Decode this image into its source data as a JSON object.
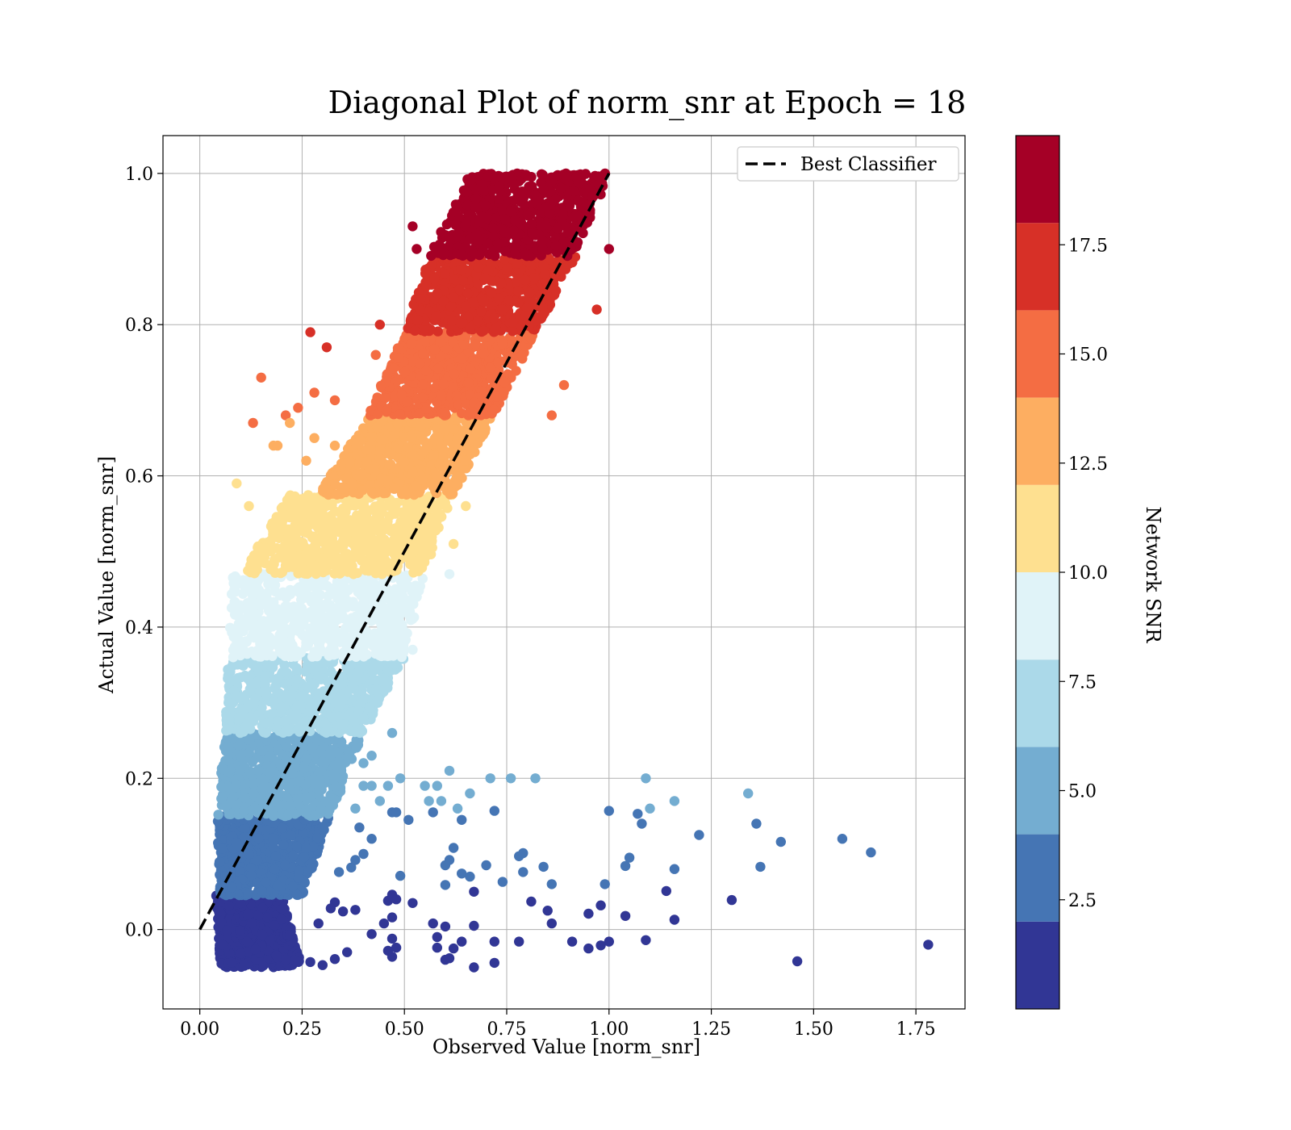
{
  "chart_data": {
    "type": "scatter",
    "title": "Diagonal Plot of norm_snr at Epoch = 18",
    "xlabel": "Observed Value [norm_snr]",
    "ylabel": "Actual Value [norm_snr]",
    "xlim": [
      -0.09,
      1.87
    ],
    "ylim": [
      -0.105,
      1.05
    ],
    "x_ticks": [
      0.0,
      0.25,
      0.5,
      0.75,
      1.0,
      1.25,
      1.5,
      1.75
    ],
    "x_tick_labels": [
      "0.00",
      "0.25",
      "0.50",
      "0.75",
      "1.00",
      "1.25",
      "1.50",
      "1.75"
    ],
    "y_ticks": [
      0.0,
      0.2,
      0.4,
      0.6,
      0.8,
      1.0
    ],
    "y_tick_labels": [
      "0.0",
      "0.2",
      "0.4",
      "0.6",
      "0.8",
      "1.0"
    ],
    "grid": true,
    "legend": {
      "placement": "upper right",
      "entries": [
        {
          "label": "Best Classifier",
          "style": "dashed",
          "color": "#000000"
        }
      ]
    },
    "reference_line": {
      "name": "Best Classifier",
      "x": [
        0.0,
        1.0
      ],
      "y": [
        0.0,
        1.0
      ]
    },
    "colorbar": {
      "label": "Network SNR",
      "range": [
        0,
        20
      ],
      "boundaries": [
        0,
        2,
        4,
        6,
        8,
        10,
        12,
        14,
        16,
        18,
        20
      ],
      "colors": [
        "#313695",
        "#4575b4",
        "#74add1",
        "#abd9e9",
        "#e0f3f8",
        "#fee090",
        "#fdae61",
        "#f46d43",
        "#d73027",
        "#a50026"
      ],
      "ticks": [
        2.5,
        5.0,
        7.5,
        10.0,
        12.5,
        15.0,
        17.5
      ],
      "tick_labels": [
        "2.5",
        "5.0",
        "7.5",
        "10.0",
        "12.5",
        "15.0",
        "17.5"
      ]
    },
    "bands": [
      {
        "snr_bin": 0,
        "y_range": [
          -0.05,
          0.045
        ],
        "x_left": [
          0.05,
          0.04
        ],
        "x_right": [
          0.25,
          0.2
        ],
        "color": "#313695"
      },
      {
        "snr_bin": 1,
        "y_range": [
          0.045,
          0.15
        ],
        "x_left": [
          0.05,
          0.04
        ],
        "x_right": [
          0.25,
          0.32
        ],
        "color": "#4575b4"
      },
      {
        "snr_bin": 2,
        "y_range": [
          0.15,
          0.26
        ],
        "x_left": [
          0.04,
          0.06
        ],
        "x_right": [
          0.32,
          0.4
        ],
        "color": "#74add1"
      },
      {
        "snr_bin": 3,
        "y_range": [
          0.26,
          0.36
        ],
        "x_left": [
          0.06,
          0.07
        ],
        "x_right": [
          0.4,
          0.5
        ],
        "color": "#abd9e9"
      },
      {
        "snr_bin": 4,
        "y_range": [
          0.36,
          0.47
        ],
        "x_left": [
          0.07,
          0.08
        ],
        "x_right": [
          0.5,
          0.55
        ],
        "color": "#e0f3f8"
      },
      {
        "snr_bin": 5,
        "y_range": [
          0.47,
          0.575
        ],
        "x_left": [
          0.1,
          0.22
        ],
        "x_right": [
          0.55,
          0.62
        ],
        "color": "#fee090"
      },
      {
        "snr_bin": 6,
        "y_range": [
          0.575,
          0.68
        ],
        "x_left": [
          0.29,
          0.41
        ],
        "x_right": [
          0.62,
          0.72
        ],
        "color": "#fdae61"
      },
      {
        "snr_bin": 7,
        "y_range": [
          0.68,
          0.79
        ],
        "x_left": [
          0.41,
          0.5
        ],
        "x_right": [
          0.72,
          0.82
        ],
        "color": "#f46d43"
      },
      {
        "snr_bin": 8,
        "y_range": [
          0.79,
          0.89
        ],
        "x_left": [
          0.5,
          0.56
        ],
        "x_right": [
          0.82,
          0.92
        ],
        "color": "#d73027"
      },
      {
        "snr_bin": 9,
        "y_range": [
          0.89,
          1.0
        ],
        "x_left": [
          0.56,
          0.66
        ],
        "x_right": [
          0.92,
          1.0
        ],
        "color": "#a50026"
      }
    ],
    "outliers": [
      {
        "x": 0.27,
        "y": 0.79,
        "c": 17.0
      },
      {
        "x": 0.31,
        "y": 0.77,
        "c": 17.0
      },
      {
        "x": 0.52,
        "y": 0.93,
        "c": 19.0
      },
      {
        "x": 0.53,
        "y": 0.9,
        "c": 19.0
      },
      {
        "x": 1.0,
        "y": 0.9,
        "c": 19.0
      },
      {
        "x": 0.97,
        "y": 0.82,
        "c": 17.0
      },
      {
        "x": 0.44,
        "y": 0.8,
        "c": 17.0
      },
      {
        "x": 0.43,
        "y": 0.76,
        "c": 15.0
      },
      {
        "x": 0.15,
        "y": 0.73,
        "c": 15.0
      },
      {
        "x": 0.13,
        "y": 0.67,
        "c": 15.0
      },
      {
        "x": 0.21,
        "y": 0.68,
        "c": 15.0
      },
      {
        "x": 0.24,
        "y": 0.69,
        "c": 15.0
      },
      {
        "x": 0.28,
        "y": 0.71,
        "c": 15.0
      },
      {
        "x": 0.33,
        "y": 0.7,
        "c": 15.0
      },
      {
        "x": 0.86,
        "y": 0.68,
        "c": 15.0
      },
      {
        "x": 0.89,
        "y": 0.72,
        "c": 15.0
      },
      {
        "x": 0.22,
        "y": 0.67,
        "c": 13.0
      },
      {
        "x": 0.18,
        "y": 0.64,
        "c": 13.0
      },
      {
        "x": 0.19,
        "y": 0.64,
        "c": 13.0
      },
      {
        "x": 0.28,
        "y": 0.65,
        "c": 13.0
      },
      {
        "x": 0.33,
        "y": 0.64,
        "c": 13.0
      },
      {
        "x": 0.26,
        "y": 0.62,
        "c": 13.0
      },
      {
        "x": 0.09,
        "y": 0.59,
        "c": 11.0
      },
      {
        "x": 0.12,
        "y": 0.56,
        "c": 11.0
      },
      {
        "x": 0.65,
        "y": 0.56,
        "c": 11.0
      },
      {
        "x": 0.62,
        "y": 0.51,
        "c": 11.0
      },
      {
        "x": 0.61,
        "y": 0.47,
        "c": 9.0
      },
      {
        "x": 0.52,
        "y": 0.37,
        "c": 9.0
      },
      {
        "x": 0.47,
        "y": 0.26,
        "c": 5.0
      },
      {
        "x": 0.42,
        "y": 0.23,
        "c": 5.0
      },
      {
        "x": 0.4,
        "y": 0.22,
        "c": 5.0
      },
      {
        "x": 0.4,
        "y": 0.19,
        "c": 5.0
      },
      {
        "x": 0.42,
        "y": 0.19,
        "c": 5.0
      },
      {
        "x": 0.46,
        "y": 0.19,
        "c": 5.0
      },
      {
        "x": 0.49,
        "y": 0.2,
        "c": 5.0
      },
      {
        "x": 0.55,
        "y": 0.19,
        "c": 5.0
      },
      {
        "x": 0.58,
        "y": 0.19,
        "c": 5.0
      },
      {
        "x": 0.61,
        "y": 0.21,
        "c": 5.0
      },
      {
        "x": 0.71,
        "y": 0.2,
        "c": 5.0
      },
      {
        "x": 0.76,
        "y": 0.2,
        "c": 5.0
      },
      {
        "x": 0.82,
        "y": 0.2,
        "c": 5.0
      },
      {
        "x": 1.09,
        "y": 0.2,
        "c": 5.0
      },
      {
        "x": 0.66,
        "y": 0.18,
        "c": 5.0
      },
      {
        "x": 1.34,
        "y": 0.18,
        "c": 5.0
      },
      {
        "x": 1.16,
        "y": 0.17,
        "c": 5.0
      },
      {
        "x": 1.1,
        "y": 0.16,
        "c": 5.0
      },
      {
        "x": 0.56,
        "y": 0.17,
        "c": 5.0
      },
      {
        "x": 0.59,
        "y": 0.17,
        "c": 5.0
      },
      {
        "x": 0.38,
        "y": 0.16,
        "c": 5.0
      },
      {
        "x": 0.44,
        "y": 0.17,
        "c": 5.0
      },
      {
        "x": 0.63,
        "y": 0.16,
        "c": 5.0
      },
      {
        "x": 0.47,
        "y": 0.155,
        "c": 3.0
      },
      {
        "x": 0.48,
        "y": 0.155,
        "c": 3.0
      },
      {
        "x": 0.51,
        "y": 0.145,
        "c": 3.0
      },
      {
        "x": 0.57,
        "y": 0.155,
        "c": 3.0
      },
      {
        "x": 0.64,
        "y": 0.145,
        "c": 3.0
      },
      {
        "x": 0.72,
        "y": 0.157,
        "c": 3.0
      },
      {
        "x": 1.0,
        "y": 0.157,
        "c": 3.0
      },
      {
        "x": 1.07,
        "y": 0.153,
        "c": 3.0
      },
      {
        "x": 1.08,
        "y": 0.14,
        "c": 3.0
      },
      {
        "x": 1.36,
        "y": 0.14,
        "c": 3.0
      },
      {
        "x": 1.22,
        "y": 0.125,
        "c": 3.0
      },
      {
        "x": 1.42,
        "y": 0.116,
        "c": 3.0
      },
      {
        "x": 1.57,
        "y": 0.12,
        "c": 3.0
      },
      {
        "x": 1.64,
        "y": 0.102,
        "c": 3.0
      },
      {
        "x": 0.39,
        "y": 0.135,
        "c": 3.0
      },
      {
        "x": 0.42,
        "y": 0.12,
        "c": 3.0
      },
      {
        "x": 0.4,
        "y": 0.1,
        "c": 3.0
      },
      {
        "x": 0.62,
        "y": 0.108,
        "c": 3.0
      },
      {
        "x": 0.78,
        "y": 0.097,
        "c": 3.0
      },
      {
        "x": 0.79,
        "y": 0.101,
        "c": 3.0
      },
      {
        "x": 1.05,
        "y": 0.095,
        "c": 3.0
      },
      {
        "x": 1.04,
        "y": 0.084,
        "c": 3.0
      },
      {
        "x": 1.37,
        "y": 0.083,
        "c": 3.0
      },
      {
        "x": 1.16,
        "y": 0.08,
        "c": 3.0
      },
      {
        "x": 0.6,
        "y": 0.085,
        "c": 3.0
      },
      {
        "x": 0.61,
        "y": 0.092,
        "c": 3.0
      },
      {
        "x": 0.7,
        "y": 0.085,
        "c": 3.0
      },
      {
        "x": 0.84,
        "y": 0.083,
        "c": 3.0
      },
      {
        "x": 0.79,
        "y": 0.076,
        "c": 3.0
      },
      {
        "x": 0.64,
        "y": 0.074,
        "c": 3.0
      },
      {
        "x": 0.66,
        "y": 0.07,
        "c": 3.0
      },
      {
        "x": 0.49,
        "y": 0.071,
        "c": 3.0
      },
      {
        "x": 0.74,
        "y": 0.063,
        "c": 3.0
      },
      {
        "x": 0.86,
        "y": 0.06,
        "c": 3.0
      },
      {
        "x": 0.99,
        "y": 0.06,
        "c": 3.0
      },
      {
        "x": 0.6,
        "y": 0.059,
        "c": 3.0
      },
      {
        "x": 0.34,
        "y": 0.076,
        "c": 3.0
      },
      {
        "x": 0.37,
        "y": 0.082,
        "c": 3.0
      },
      {
        "x": 0.38,
        "y": 0.092,
        "c": 3.0
      },
      {
        "x": 0.67,
        "y": 0.05,
        "c": 1.0
      },
      {
        "x": 1.14,
        "y": 0.051,
        "c": 1.0
      },
      {
        "x": 1.3,
        "y": 0.039,
        "c": 1.0
      },
      {
        "x": 0.46,
        "y": 0.038,
        "c": 1.0
      },
      {
        "x": 0.52,
        "y": 0.035,
        "c": 1.0
      },
      {
        "x": 0.47,
        "y": 0.046,
        "c": 1.0
      },
      {
        "x": 0.48,
        "y": 0.04,
        "c": 1.0
      },
      {
        "x": 0.81,
        "y": 0.037,
        "c": 1.0
      },
      {
        "x": 0.85,
        "y": 0.025,
        "c": 1.0
      },
      {
        "x": 0.98,
        "y": 0.032,
        "c": 1.0
      },
      {
        "x": 0.95,
        "y": 0.021,
        "c": 1.0
      },
      {
        "x": 1.04,
        "y": 0.018,
        "c": 1.0
      },
      {
        "x": 1.16,
        "y": 0.013,
        "c": 1.0
      },
      {
        "x": 0.86,
        "y": 0.008,
        "c": 1.0
      },
      {
        "x": 0.57,
        "y": 0.008,
        "c": 1.0
      },
      {
        "x": 0.6,
        "y": 0.004,
        "c": 1.0
      },
      {
        "x": 0.67,
        "y": 0.005,
        "c": 1.0
      },
      {
        "x": 0.47,
        "y": 0.016,
        "c": 1.0
      },
      {
        "x": 0.45,
        "y": 0.008,
        "c": 1.0
      },
      {
        "x": 0.38,
        "y": 0.026,
        "c": 1.0
      },
      {
        "x": 0.33,
        "y": 0.036,
        "c": 1.0
      },
      {
        "x": 0.32,
        "y": 0.028,
        "c": 1.0
      },
      {
        "x": 0.35,
        "y": 0.024,
        "c": 1.0
      },
      {
        "x": 0.29,
        "y": 0.008,
        "c": 1.0
      },
      {
        "x": 0.42,
        "y": -0.006,
        "c": 1.0
      },
      {
        "x": 0.47,
        "y": -0.012,
        "c": 1.0
      },
      {
        "x": 0.58,
        "y": -0.01,
        "c": 1.0
      },
      {
        "x": 0.64,
        "y": -0.016,
        "c": 1.0
      },
      {
        "x": 0.72,
        "y": -0.016,
        "c": 1.0
      },
      {
        "x": 0.78,
        "y": -0.016,
        "c": 1.0
      },
      {
        "x": 0.91,
        "y": -0.016,
        "c": 1.0
      },
      {
        "x": 1.0,
        "y": -0.016,
        "c": 1.0
      },
      {
        "x": 1.09,
        "y": -0.014,
        "c": 1.0
      },
      {
        "x": 0.98,
        "y": -0.021,
        "c": 1.0
      },
      {
        "x": 0.95,
        "y": -0.025,
        "c": 1.0
      },
      {
        "x": 0.58,
        "y": -0.024,
        "c": 1.0
      },
      {
        "x": 0.62,
        "y": -0.025,
        "c": 1.0
      },
      {
        "x": 0.48,
        "y": -0.024,
        "c": 1.0
      },
      {
        "x": 0.46,
        "y": -0.028,
        "c": 1.0
      },
      {
        "x": 0.47,
        "y": -0.036,
        "c": 1.0
      },
      {
        "x": 0.6,
        "y": -0.04,
        "c": 1.0
      },
      {
        "x": 0.61,
        "y": -0.038,
        "c": 1.0
      },
      {
        "x": 0.67,
        "y": -0.05,
        "c": 1.0
      },
      {
        "x": 0.72,
        "y": -0.044,
        "c": 1.0
      },
      {
        "x": 0.36,
        "y": -0.03,
        "c": 1.0
      },
      {
        "x": 0.33,
        "y": -0.039,
        "c": 1.0
      },
      {
        "x": 0.3,
        "y": -0.047,
        "c": 1.0
      },
      {
        "x": 0.27,
        "y": -0.043,
        "c": 1.0
      },
      {
        "x": 1.46,
        "y": -0.042,
        "c": 1.0
      },
      {
        "x": 1.78,
        "y": -0.02,
        "c": 1.0
      }
    ]
  }
}
